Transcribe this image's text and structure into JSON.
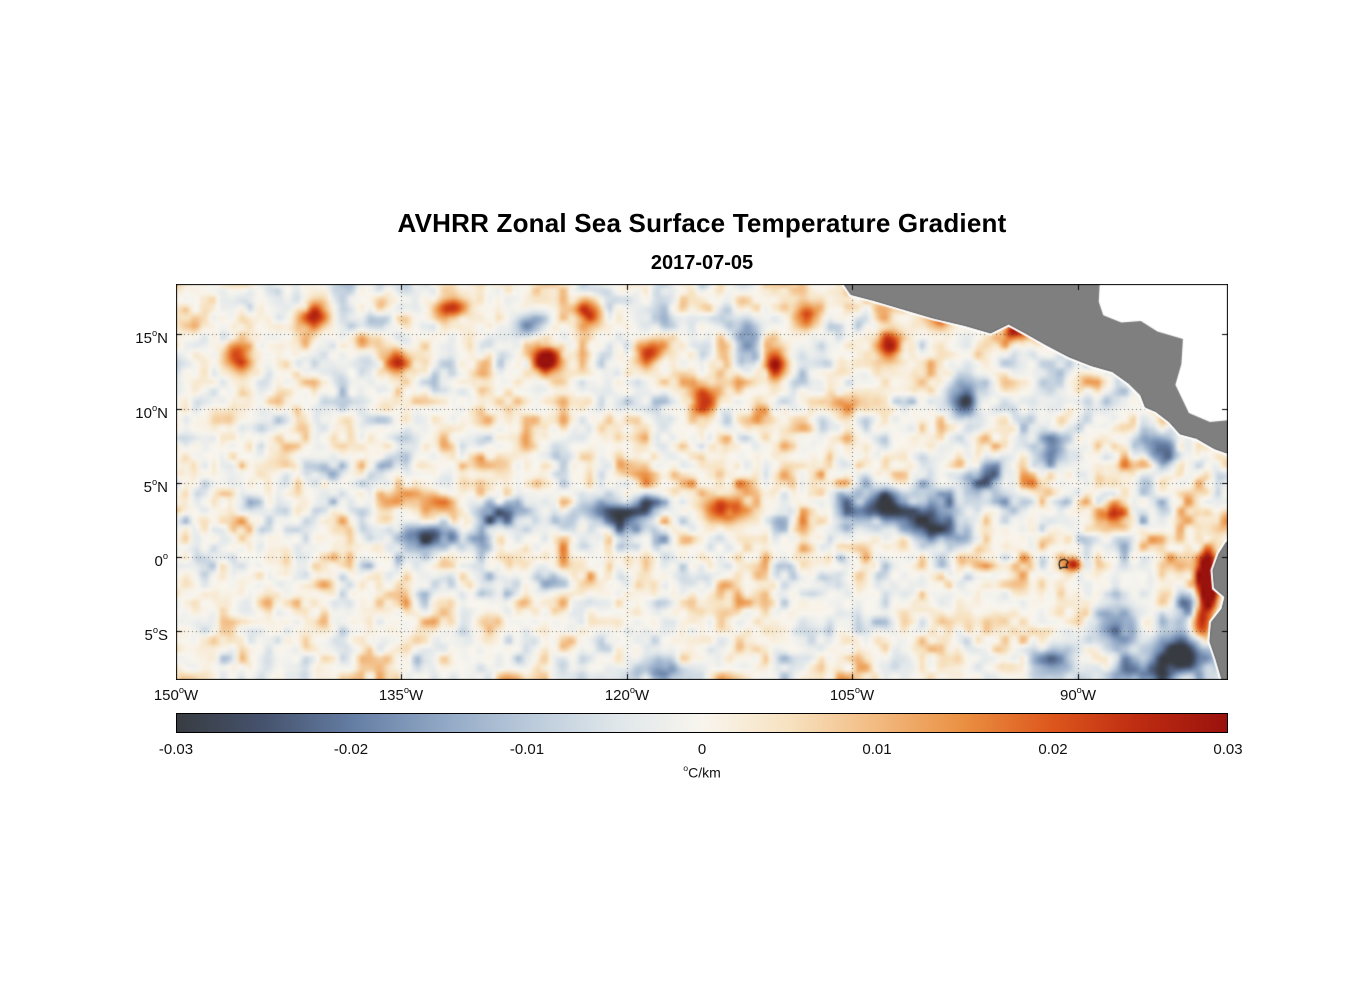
{
  "title": "AVHRR Zonal Sea Surface Temperature Gradient",
  "subtitle": "2017-07-05",
  "deg_symbol": "o",
  "chart_data": {
    "type": "heatmap",
    "variable": "zonal sea surface temperature gradient",
    "units": "°C/km",
    "value_range": [
      -0.03,
      0.03
    ],
    "lon_range": [
      -150,
      -80
    ],
    "lat_range": [
      -8.3,
      18.4
    ],
    "grid": "dotted, at labeled ticks",
    "x_ticks": [
      {
        "num": "150",
        "hemi": "W",
        "lon": -150
      },
      {
        "num": "135",
        "hemi": "W",
        "lon": -135
      },
      {
        "num": "120",
        "hemi": "W",
        "lon": -120
      },
      {
        "num": "105",
        "hemi": "W",
        "lon": -105
      },
      {
        "num": "90",
        "hemi": "W",
        "lon": -90
      }
    ],
    "y_ticks": [
      {
        "num": "15",
        "hemi": "N",
        "lat": 15
      },
      {
        "num": "10",
        "hemi": "N",
        "lat": 10
      },
      {
        "num": "5",
        "hemi": "N",
        "lat": 5
      },
      {
        "num": "0",
        "hemi": "",
        "lat": 0
      },
      {
        "num": "5",
        "hemi": "S",
        "lat": -5
      }
    ],
    "colorbar": {
      "orientation": "horizontal",
      "ticks": [
        "-0.03",
        "-0.02",
        "-0.01",
        "0",
        "0.01",
        "0.02",
        "0.03"
      ],
      "label_sup": "o",
      "label_text": "C/km",
      "colormap": [
        [
          0.0,
          "#383c42"
        ],
        [
          0.083,
          "#46536e"
        ],
        [
          0.167,
          "#647da3"
        ],
        [
          0.25,
          "#8fa6c4"
        ],
        [
          0.333,
          "#b9c9da"
        ],
        [
          0.417,
          "#dfe6ea"
        ],
        [
          0.5,
          "#f8f5ee"
        ],
        [
          0.583,
          "#f7e2c0"
        ],
        [
          0.667,
          "#f2ba80"
        ],
        [
          0.75,
          "#ea8f41"
        ],
        [
          0.833,
          "#dd571c"
        ],
        [
          0.917,
          "#bd2b11"
        ],
        [
          1.0,
          "#9a120d"
        ]
      ]
    },
    "land_color": "#7f7f7f",
    "no_data_color": "#ffffff",
    "field_description": "Mostly weak gradients (|dT/dx| < 0.01 C/km, pale blue/peach mottling) across the eastern tropical Pacific, with scattered mesoscale positive (orange/red) and negative (slate blue) patches; enhanced negative streaks near 0-5N (tropical instability wave band); a strong positive (dark red) band hugging the Ecuador/Peru coast near 81W between 0 and 5S; gray land (Mexico/Central America upper right, South America lower right); white no-data over the Caribbean; Galapagos outline near 91W, 0.5S.",
    "land": {
      "central_america": [
        [
          -105.7,
          18.6
        ],
        [
          -105.1,
          17.7
        ],
        [
          -103.6,
          17.3
        ],
        [
          -101.6,
          16.7
        ],
        [
          -99.6,
          16.1
        ],
        [
          -97.5,
          15.6
        ],
        [
          -95.8,
          15.1
        ],
        [
          -94.6,
          15.7
        ],
        [
          -93.5,
          15.1
        ],
        [
          -92.1,
          14.3
        ],
        [
          -90.6,
          13.5
        ],
        [
          -89.1,
          12.9
        ],
        [
          -87.7,
          12.5
        ],
        [
          -86.6,
          11.7
        ],
        [
          -85.8,
          10.9
        ],
        [
          -85.5,
          10.1
        ],
        [
          -84.8,
          9.8
        ],
        [
          -83.9,
          9.1
        ],
        [
          -83.2,
          8.3
        ],
        [
          -82.1,
          8.0
        ],
        [
          -80.9,
          7.3
        ],
        [
          -79.5,
          6.8
        ],
        [
          -79.0,
          7.2
        ],
        [
          -79.0,
          19.2
        ],
        [
          -106.0,
          19.2
        ]
      ],
      "caribbean_no_data": [
        [
          -88.5,
          19.2
        ],
        [
          -88.6,
          17.2
        ],
        [
          -88.3,
          16.3
        ],
        [
          -87.1,
          15.8
        ],
        [
          -85.8,
          15.9
        ],
        [
          -84.7,
          15.2
        ],
        [
          -83.0,
          14.7
        ],
        [
          -83.1,
          13.0
        ],
        [
          -83.5,
          11.6
        ],
        [
          -82.6,
          9.7
        ],
        [
          -81.2,
          9.1
        ],
        [
          -79.0,
          9.3
        ],
        [
          -79.0,
          19.2
        ]
      ],
      "south_america": [
        [
          -79.0,
          1.6
        ],
        [
          -80.1,
          1.0
        ],
        [
          -80.6,
          0.2
        ],
        [
          -81.0,
          -0.9
        ],
        [
          -80.9,
          -2.1
        ],
        [
          -80.2,
          -2.7
        ],
        [
          -80.4,
          -3.5
        ],
        [
          -81.1,
          -4.4
        ],
        [
          -81.2,
          -5.7
        ],
        [
          -80.8,
          -6.9
        ],
        [
          -80.3,
          -8.6
        ],
        [
          -79.0,
          -8.6
        ]
      ],
      "galapagos": [
        -90.9,
        -0.45
      ]
    },
    "hotspots_format": "[lon, lat, sigma_lon, sigma_lat, amplitude_C_per_km]",
    "hotspots": [
      [
        -81.35,
        -1.8,
        0.45,
        1.5,
        0.06
      ],
      [
        -81.9,
        -4.4,
        0.5,
        0.9,
        0.034
      ],
      [
        -90.3,
        -0.5,
        0.4,
        0.35,
        0.028
      ],
      [
        -125.2,
        13.5,
        0.8,
        0.9,
        0.028
      ],
      [
        -140.8,
        16.3,
        0.7,
        0.7,
        0.026
      ],
      [
        -110.2,
        13.0,
        0.6,
        0.8,
        0.03
      ],
      [
        -92.8,
        15.6,
        0.7,
        0.7,
        0.026
      ],
      [
        -114.8,
        10.5,
        0.9,
        0.6,
        0.024
      ],
      [
        -113.5,
        3.2,
        1.2,
        0.7,
        0.024
      ],
      [
        -105.5,
        10.3,
        0.7,
        0.6,
        0.022
      ],
      [
        -118.5,
        13.8,
        0.8,
        0.7,
        0.024
      ],
      [
        -135.5,
        13.2,
        0.7,
        0.7,
        0.022
      ],
      [
        -99.0,
        16.6,
        0.8,
        0.6,
        0.024
      ],
      [
        -94.3,
        15.2,
        0.5,
        0.5,
        0.028
      ],
      [
        -87.8,
        3.0,
        0.7,
        0.6,
        0.026
      ],
      [
        -102.4,
        14.2,
        0.7,
        0.7,
        0.028
      ],
      [
        -146.0,
        13.6,
        0.7,
        0.7,
        0.022
      ],
      [
        -131.6,
        16.8,
        0.8,
        0.5,
        0.024
      ],
      [
        -108.0,
        16.2,
        0.6,
        0.6,
        0.024
      ],
      [
        -122.5,
        16.5,
        0.6,
        0.6,
        0.022
      ],
      [
        -102.2,
        3.3,
        2.4,
        0.9,
        -0.03
      ],
      [
        -99.3,
        1.8,
        1.4,
        0.7,
        -0.02
      ],
      [
        -97.5,
        10.5,
        1.0,
        1.2,
        -0.022
      ],
      [
        -120.9,
        2.8,
        2.0,
        0.8,
        -0.024
      ],
      [
        -133.0,
        1.5,
        1.8,
        0.7,
        -0.026
      ],
      [
        -128.5,
        3.2,
        1.2,
        0.6,
        -0.02
      ],
      [
        -96.0,
        5.5,
        0.8,
        0.8,
        -0.018
      ],
      [
        -83.0,
        -6.3,
        1.5,
        0.9,
        -0.028
      ],
      [
        -85.6,
        -7.8,
        1.8,
        0.7,
        -0.022
      ],
      [
        -82.2,
        -3.6,
        0.8,
        1.0,
        -0.022
      ],
      [
        -112.0,
        14.6,
        0.7,
        0.9,
        -0.02
      ],
      [
        -126.6,
        15.6,
        0.8,
        0.6,
        -0.018
      ],
      [
        -91.5,
        7.5,
        0.9,
        0.9,
        -0.02
      ],
      [
        -84.5,
        7.4,
        1.0,
        0.8,
        -0.022
      ],
      [
        -118.0,
        -7.8,
        1.5,
        0.6,
        -0.018
      ],
      [
        -92.0,
        -7.0,
        1.2,
        0.8,
        -0.02
      ],
      [
        -87.5,
        -4.5,
        1.2,
        1.0,
        -0.016
      ],
      [
        -140.0,
        5.5,
        1.0,
        0.6,
        -0.016
      ]
    ]
  },
  "colors": {
    "background": "#ffffff",
    "text": "#000000",
    "axis": "#000000",
    "gridline": "#3c3c3c"
  }
}
